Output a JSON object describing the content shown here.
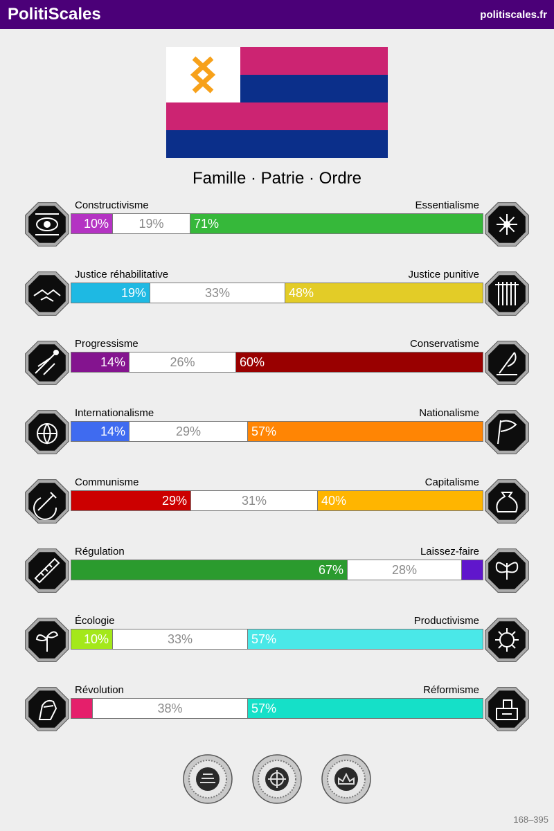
{
  "header": {
    "brand": "PolitiScales",
    "site": "politiscales.fr"
  },
  "flag": {
    "colors": {
      "canton": "#ffffff",
      "symbol": "#f7a11a",
      "pink": "#cc2472",
      "blue": "#0b2f8a"
    }
  },
  "motto": "Famille · Patrie · Ordre",
  "axes": [
    {
      "left_label": "Constructivisme",
      "right_label": "Essentialisme",
      "left_icon": "eye-icon",
      "right_icon": "flower-icon",
      "left_pct": 10,
      "mid_pct": 19,
      "right_pct": 71,
      "left_text": "10%",
      "mid_text": "19%",
      "right_text": "71%",
      "left_color": "#b433c3",
      "right_color": "#36b83a"
    },
    {
      "left_label": "Justice réhabilitative",
      "right_label": "Justice punitive",
      "left_icon": "handshake-icon",
      "right_icon": "prison-bars-icon",
      "left_pct": 19,
      "mid_pct": 33,
      "right_pct": 48,
      "left_text": "19%",
      "mid_text": "33%",
      "right_text": "48%",
      "left_color": "#1eb9e3",
      "right_color": "#e3cc27"
    },
    {
      "left_label": "Progressisme",
      "right_label": "Conservatisme",
      "left_icon": "rocket-icon",
      "right_icon": "feather-icon",
      "left_pct": 14,
      "mid_pct": 26,
      "right_pct": 60,
      "left_text": "14%",
      "mid_text": "26%",
      "right_text": "60%",
      "left_color": "#84148f",
      "right_color": "#990000"
    },
    {
      "left_label": "Internationalisme",
      "right_label": "Nationalisme",
      "left_icon": "globe-icon",
      "right_icon": "flag-icon",
      "left_pct": 14,
      "mid_pct": 29,
      "right_pct": 57,
      "left_text": "14%",
      "mid_text": "29%",
      "right_text": "57%",
      "left_color": "#3f6bf0",
      "right_color": "#ff8504"
    },
    {
      "left_label": "Communisme",
      "right_label": "Capitalisme",
      "left_icon": "hammer-sickle-icon",
      "right_icon": "money-bag-icon",
      "left_pct": 29,
      "mid_pct": 31,
      "right_pct": 40,
      "left_text": "29%",
      "mid_text": "31%",
      "right_text": "40%",
      "left_color": "#cc0000",
      "right_color": "#ffb500"
    },
    {
      "left_label": "Régulation",
      "right_label": "Laissez-faire",
      "left_icon": "ruler-icon",
      "right_icon": "butterfly-icon",
      "left_pct": 67,
      "mid_pct": 28,
      "right_pct": 5,
      "left_text": "67%",
      "mid_text": "28%",
      "right_text": "",
      "left_color": "#2b9b2e",
      "right_color": "#6016cc"
    },
    {
      "left_label": "Écologie",
      "right_label": "Productivisme",
      "left_icon": "sprout-icon",
      "right_icon": "gear-icon",
      "left_pct": 10,
      "mid_pct": 33,
      "right_pct": 57,
      "left_text": "10%",
      "mid_text": "33%",
      "right_text": "57%",
      "left_color": "#a4e81a",
      "right_color": "#4ae8e8"
    },
    {
      "left_label": "Révolution",
      "right_label": "Réformisme",
      "left_icon": "fist-icon",
      "right_icon": "ballot-box-icon",
      "left_pct": 5,
      "mid_pct": 38,
      "right_pct": 57,
      "left_text": "",
      "mid_text": "38%",
      "right_text": "57%",
      "left_color": "#e51f6b",
      "right_color": "#15e0c8"
    }
  ],
  "seals": [
    {
      "icon": "books-seal-icon"
    },
    {
      "icon": "compass-seal-icon"
    },
    {
      "icon": "crown-seal-icon"
    }
  ],
  "footer": "168–395"
}
